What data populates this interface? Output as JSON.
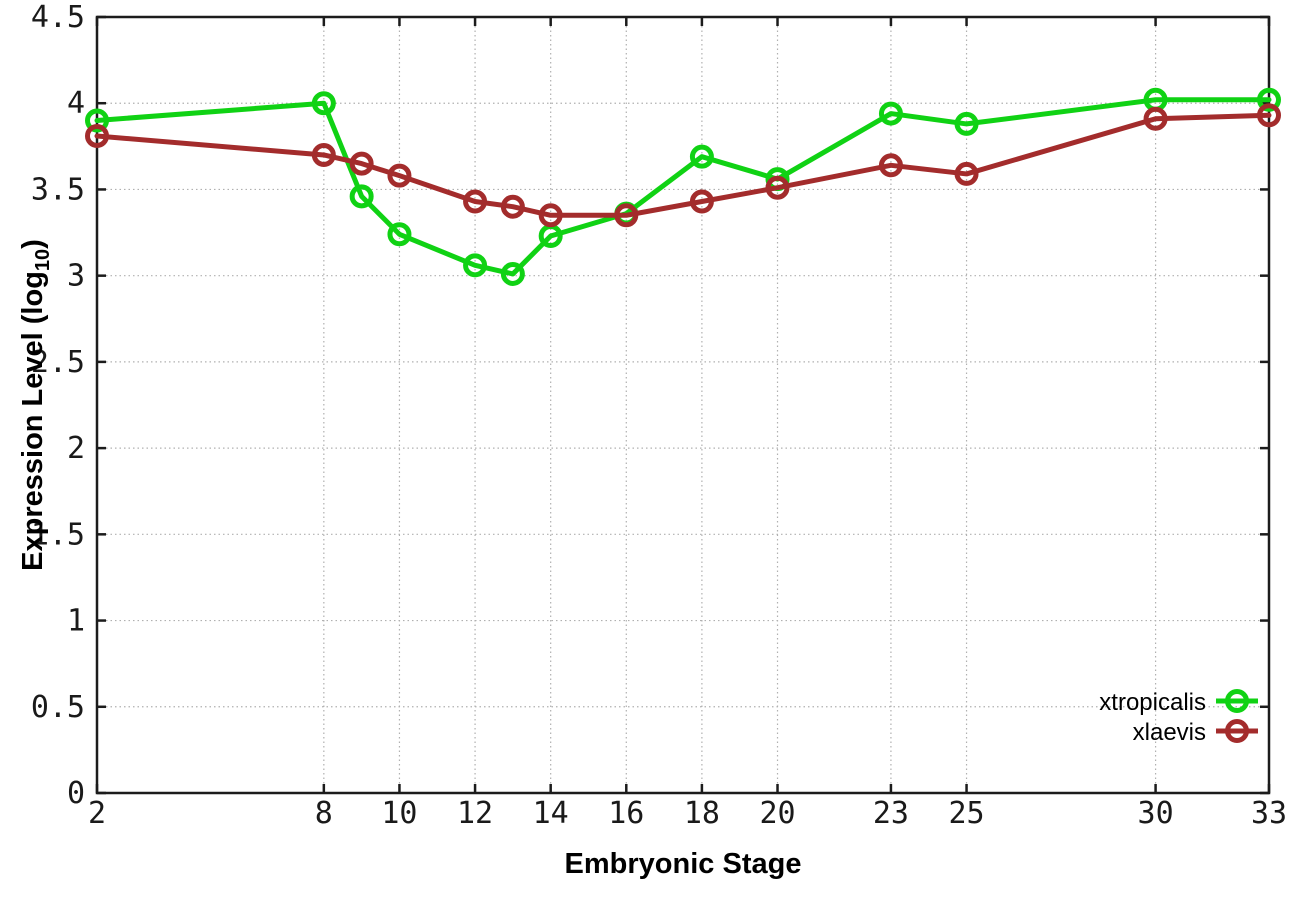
{
  "figure": {
    "background": "#ffffff",
    "axis_color": "#1c1c1c",
    "grid_color": "#b0b0b0"
  },
  "chart_data": {
    "type": "line",
    "title": "",
    "xlabel": "Embryonic Stage",
    "ylabel": {
      "prefix": "Expression Level (log",
      "subscript": "10",
      "suffix": ")"
    },
    "xlim": [
      2,
      33
    ],
    "ylim": [
      0,
      4.5
    ],
    "grid": true,
    "legend_position": "inside-bottom-right",
    "x_tick_values": [
      2,
      8,
      10,
      12,
      14,
      16,
      18,
      20,
      23,
      25,
      30,
      33
    ],
    "x_tick_labels": [
      "2",
      "8",
      "10",
      "12",
      "14",
      "16",
      "18",
      "20",
      "23",
      "25",
      "30",
      "33"
    ],
    "y_tick_values": [
      0,
      0.5,
      1,
      1.5,
      2,
      2.5,
      3,
      3.5,
      4,
      4.5
    ],
    "y_tick_labels": [
      "0",
      "0.5",
      "1",
      "1.5",
      "2",
      "2.5",
      "3",
      "3.5",
      "4",
      "4.5"
    ],
    "x": [
      2,
      8,
      9,
      10,
      12,
      13,
      14,
      16,
      18,
      20,
      23,
      25,
      30,
      33
    ],
    "series": [
      {
        "name": "xtropicalis",
        "color": "#10d214",
        "marker": "open-circle",
        "values": [
          3.9,
          4.0,
          3.46,
          3.24,
          3.06,
          3.01,
          3.23,
          3.36,
          3.69,
          3.56,
          3.94,
          3.88,
          4.02,
          4.02
        ]
      },
      {
        "name": "xlaevis",
        "color": "#a32c2c",
        "marker": "open-circle",
        "values": [
          3.81,
          3.7,
          3.65,
          3.58,
          3.43,
          3.4,
          3.35,
          3.35,
          3.43,
          3.51,
          3.64,
          3.59,
          3.91,
          3.93
        ]
      }
    ]
  }
}
